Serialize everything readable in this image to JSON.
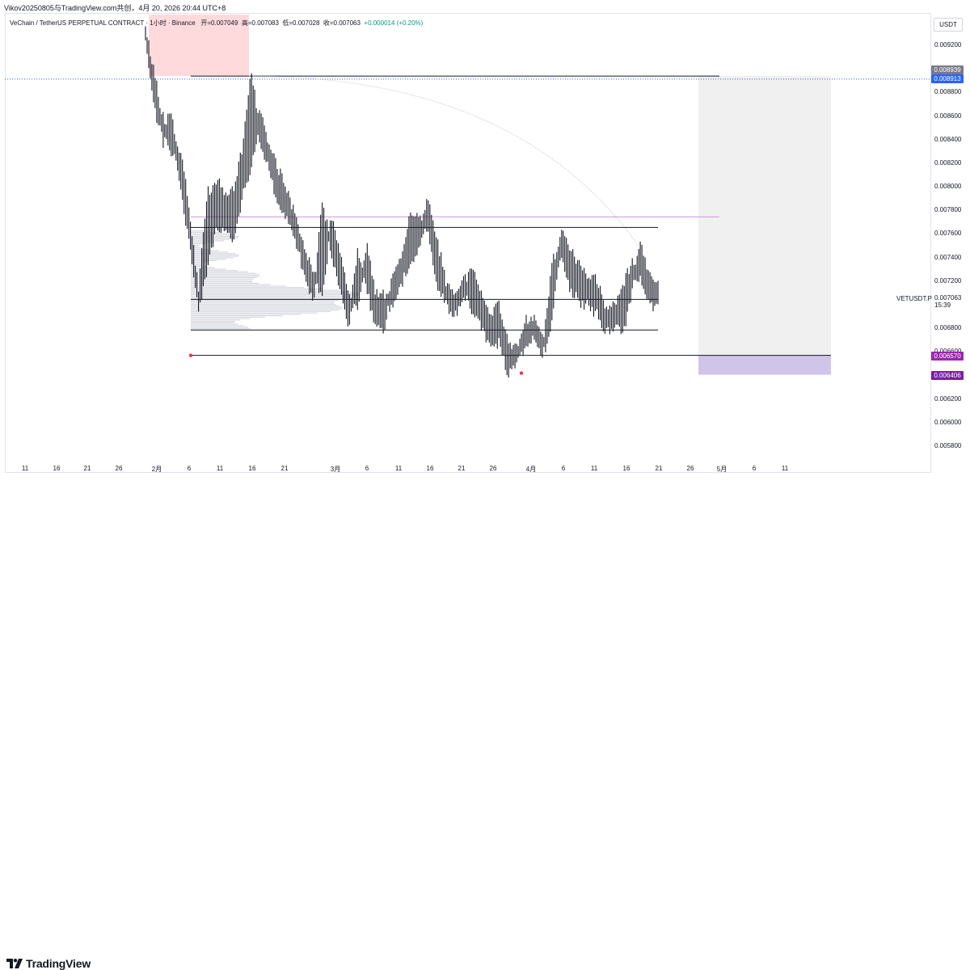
{
  "caption": "Vikov20250805与TradingView.com共创，4月 20, 2026 20:44 UTC+8",
  "legend": {
    "symbol": "VeChain / TetherUS PERPETUAL CONTRACT · 1小时 · Binance",
    "open": "开=0.007049",
    "high": "高=0.007083",
    "low": "低=0.007028",
    "close": "收=0.007063",
    "change": "+0.000014 (+0.20%)"
  },
  "currency": "USDT",
  "price_axis": {
    "ticks": [
      "0.009200",
      "0.008800",
      "0.008600",
      "0.008400",
      "0.008200",
      "0.008000",
      "0.007800",
      "0.007600",
      "0.007400",
      "0.007200",
      "0.006800",
      "0.006600",
      "0.006200",
      "0.006000",
      "0.005800"
    ],
    "tags": [
      {
        "label": "0.008939",
        "bg": "#787b86",
        "fg": "#ffffff"
      },
      {
        "label": "0.008913",
        "bg": "#2962ff",
        "fg": "#ffffff"
      },
      {
        "label": "0.006570",
        "bg": "#9c27b0",
        "fg": "#ffffff"
      },
      {
        "label": "0.006406",
        "bg": "#7b1fa2",
        "fg": "#ffffff"
      }
    ],
    "symbol_label": "VETUSDT.P",
    "last_price": "0.007063",
    "countdown": "15:39"
  },
  "time_axis": [
    "11",
    "16",
    "21",
    "26",
    "2月",
    "6",
    "11",
    "16",
    "21",
    "3月",
    "6",
    "11",
    "16",
    "21",
    "26",
    "4月",
    "6",
    "11",
    "16",
    "21",
    "26",
    "5月",
    "6",
    "11"
  ],
  "brand": "TradingView",
  "colors": {
    "candle": "#131722",
    "magenta_line": "#ce93d8",
    "dotted_line": "#2962ff",
    "red_zone": "#ffcdd2",
    "purple_zone": "#d1c4e9",
    "grey_zone": "#f0f0f0",
    "volume_profile": "#d1d4dc"
  },
  "chart_data": {
    "type": "candlestick",
    "series": [
      {
        "name": "VETUSDT.P"
      }
    ],
    "ylim": [
      0.0057,
      0.0094
    ],
    "levels": [
      {
        "role": "range_high",
        "y": 0.007655
      },
      {
        "role": "point_of_control",
        "y": 0.007045
      },
      {
        "role": "range_mid_low",
        "y": 0.006785
      },
      {
        "role": "range_low",
        "y": 0.00657
      },
      {
        "role": "swing_high",
        "y": 0.008939
      },
      {
        "role": "magenta_target",
        "y": 0.007745
      },
      {
        "role": "current_marker",
        "y": 0.008913
      }
    ],
    "path": [
      [
        0.00925,
        0.00932
      ],
      [
        0.00893,
        0.0087
      ],
      [
        0.0084,
        0.00855
      ],
      [
        0.0086,
        0.0083
      ],
      [
        0.008,
        0.00825
      ],
      [
        0.0076,
        0.0077
      ],
      [
        0.007,
        0.0071
      ],
      [
        0.00735,
        0.0079
      ],
      [
        0.0077,
        0.008
      ],
      [
        0.0077,
        0.0079
      ],
      [
        0.0076,
        0.0079
      ],
      [
        0.008,
        0.0083
      ],
      [
        0.0082,
        0.00893
      ],
      [
        0.0086,
        0.0084
      ],
      [
        0.0083,
        0.0082
      ],
      [
        0.0081,
        0.0079
      ],
      [
        0.0079,
        0.0078
      ],
      [
        0.0077,
        0.0076
      ],
      [
        0.0074,
        0.0073
      ],
      [
        0.00725,
        0.00705
      ],
      [
        0.00715,
        0.0078
      ],
      [
        0.0077,
        0.00745
      ],
      [
        0.0074,
        0.0072
      ],
      [
        0.00705,
        0.00685
      ],
      [
        0.007,
        0.0074
      ],
      [
        0.00745,
        0.0072
      ],
      [
        0.00705,
        0.0069
      ],
      [
        0.007,
        0.00685
      ],
      [
        0.00705,
        0.0072
      ],
      [
        0.00725,
        0.00735
      ],
      [
        0.0074,
        0.0077
      ],
      [
        0.00755,
        0.0077
      ],
      [
        0.00785,
        0.00765
      ],
      [
        0.0075,
        0.0072
      ],
      [
        0.00715,
        0.00705
      ],
      [
        0.007,
        0.00695
      ],
      [
        0.0071,
        0.0072
      ],
      [
        0.00725,
        0.007
      ],
      [
        0.00705,
        0.0069
      ],
      [
        0.00685,
        0.0067
      ],
      [
        0.00695,
        0.00675
      ],
      [
        0.00665,
        0.00645
      ],
      [
        0.00655,
        0.0066
      ],
      [
        0.0068,
        0.0067
      ],
      [
        0.00685,
        0.00675
      ],
      [
        0.00665,
        0.0066
      ],
      [
        0.0069,
        0.0073
      ],
      [
        0.0076,
        0.00745
      ],
      [
        0.0074,
        0.0072
      ],
      [
        0.0073,
        0.0071
      ],
      [
        0.00715,
        0.00705
      ],
      [
        0.0072,
        0.007
      ],
      [
        0.0069,
        0.00685
      ],
      [
        0.00695,
        0.00685
      ],
      [
        0.0068,
        0.0071
      ],
      [
        0.00715,
        0.0073
      ],
      [
        0.00745,
        0.0073
      ],
      [
        0.0072,
        0.00705
      ],
      [
        0.0071,
        0.00706
      ]
    ]
  }
}
